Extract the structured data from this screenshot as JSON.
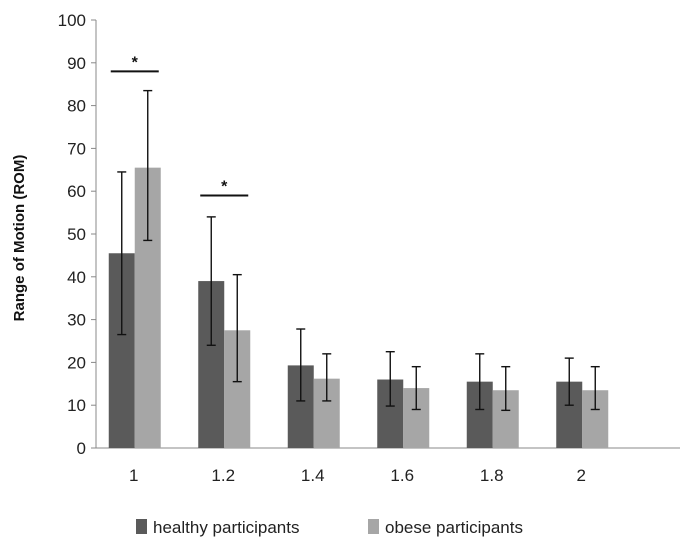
{
  "chart_data": {
    "type": "bar",
    "title": "",
    "xlabel": "",
    "ylabel": "Range of Motion (ROM)",
    "ylim": [
      0,
      100
    ],
    "yticks": [
      0,
      10,
      20,
      30,
      40,
      50,
      60,
      70,
      80,
      90,
      100
    ],
    "categories": [
      "1",
      "1.2",
      "1.4",
      "1.6",
      "1.8",
      "2"
    ],
    "series": [
      {
        "name": "healthy participants",
        "color": "#5a5a5a",
        "values": [
          45.5,
          39.0,
          19.3,
          16.0,
          15.5,
          15.5
        ],
        "error_upper": [
          64.5,
          54.0,
          27.8,
          22.5,
          22.0,
          21.0
        ],
        "error_lower": [
          26.5,
          24.0,
          11.0,
          9.8,
          9.0,
          10.0
        ]
      },
      {
        "name": "obese participants",
        "color": "#a6a6a6",
        "values": [
          65.5,
          27.5,
          16.2,
          14.0,
          13.5,
          13.5
        ],
        "error_upper": [
          83.5,
          40.5,
          22.0,
          19.0,
          19.0,
          19.0
        ],
        "error_lower": [
          48.5,
          15.5,
          11.0,
          9.0,
          8.8,
          9.0
        ]
      }
    ],
    "significance": [
      {
        "category": "1",
        "label": "*",
        "y": 88
      },
      {
        "category": "1.2",
        "label": "*",
        "y": 59
      }
    ],
    "legend": {
      "position": "bottom"
    },
    "grid": false
  }
}
